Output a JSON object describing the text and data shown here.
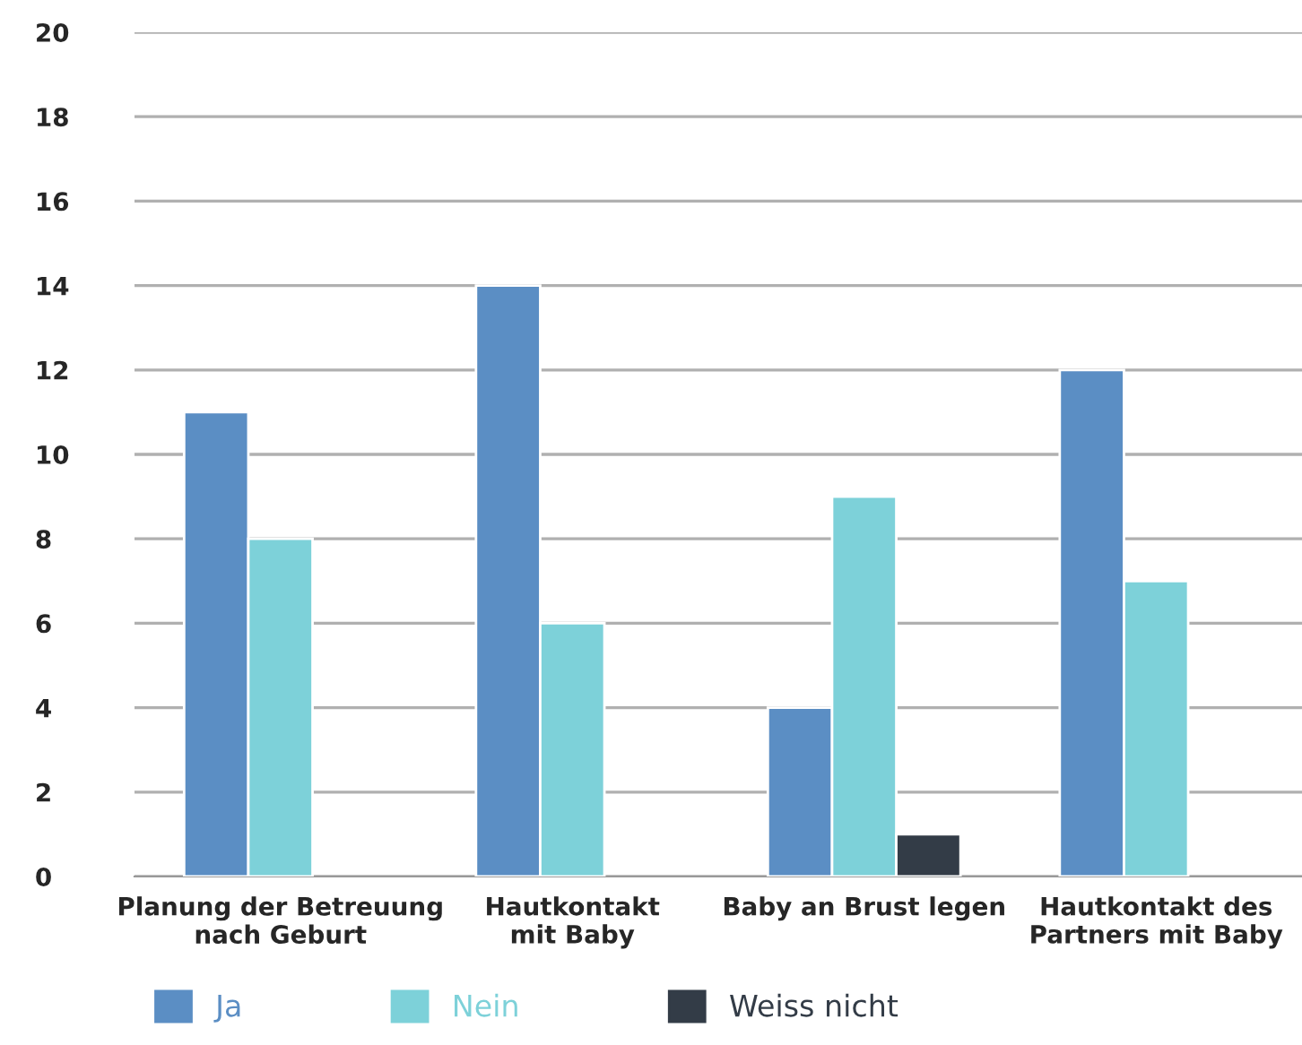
{
  "chart_data": {
    "type": "bar",
    "categories": [
      "Planung der Betreuung\nnach Geburt",
      "Hautkontakt\nmit Baby",
      "Baby an Brust legen",
      "Hautkontakt des\nPartners mit Baby"
    ],
    "series": [
      {
        "name": "Ja",
        "color": "#5b8ec4",
        "values": [
          11,
          14,
          4,
          12
        ]
      },
      {
        "name": "Nein",
        "color": "#7dd1d9",
        "values": [
          8,
          6,
          9,
          7
        ]
      },
      {
        "name": "Weiss nicht",
        "color": "#333c47",
        "values": [
          null,
          null,
          1,
          null
        ]
      }
    ],
    "ylim": [
      0,
      20
    ],
    "yticks": [
      0,
      2,
      4,
      6,
      8,
      10,
      12,
      14,
      16,
      18,
      20
    ],
    "grid": "y",
    "legend": "bottom"
  }
}
